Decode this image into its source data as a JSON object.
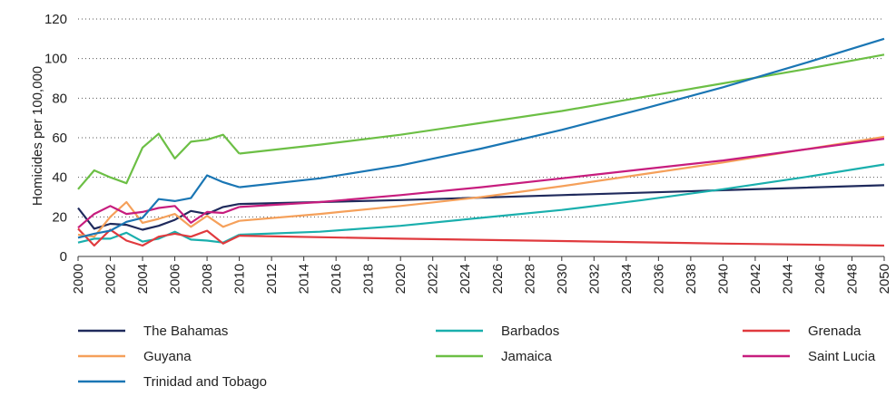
{
  "chart_data": {
    "type": "line",
    "ylabel": "Homicides per 100,000",
    "xlabel": "",
    "ylim": [
      0,
      120
    ],
    "xlim": [
      2000,
      2050
    ],
    "y_ticks": [
      0,
      20,
      40,
      60,
      80,
      100,
      120
    ],
    "x_ticks": [
      2000,
      2002,
      2004,
      2006,
      2008,
      2010,
      2012,
      2014,
      2016,
      2018,
      2020,
      2022,
      2024,
      2026,
      2028,
      2030,
      2032,
      2034,
      2036,
      2038,
      2040,
      2042,
      2044,
      2046,
      2048,
      2050
    ],
    "projection_start": 2010,
    "grid": "dotted-horizontal",
    "legend_placement": "bottom",
    "series": [
      {
        "name": "The Bahamas",
        "color": "#1f2a5c",
        "observed": [
          [
            2000,
            24.5
          ],
          [
            2001,
            14
          ],
          [
            2002,
            16.5
          ],
          [
            2003,
            16
          ],
          [
            2004,
            13.5
          ],
          [
            2005,
            15.5
          ],
          [
            2006,
            18.5
          ],
          [
            2007,
            23
          ],
          [
            2008,
            21.5
          ],
          [
            2009,
            25
          ],
          [
            2010,
            26.5
          ]
        ],
        "projected": [
          [
            2010,
            26.5
          ],
          [
            2020,
            28.5
          ],
          [
            2030,
            31
          ],
          [
            2040,
            33.5
          ],
          [
            2050,
            36
          ]
        ]
      },
      {
        "name": "Barbados",
        "color": "#1aafad",
        "observed": [
          [
            2000,
            7
          ],
          [
            2001,
            9
          ],
          [
            2002,
            9
          ],
          [
            2003,
            12
          ],
          [
            2004,
            7.5
          ],
          [
            2005,
            9
          ],
          [
            2006,
            12.5
          ],
          [
            2007,
            8.5
          ],
          [
            2008,
            8
          ],
          [
            2009,
            7
          ],
          [
            2010,
            11
          ]
        ],
        "projected": [
          [
            2010,
            11
          ],
          [
            2015,
            12.5
          ],
          [
            2020,
            15.5
          ],
          [
            2025,
            19.5
          ],
          [
            2030,
            23.5
          ],
          [
            2035,
            28.5
          ],
          [
            2040,
            34
          ],
          [
            2045,
            40
          ],
          [
            2050,
            46.5
          ]
        ]
      },
      {
        "name": "Grenada",
        "color": "#e03a3e",
        "observed": [
          [
            2000,
            14
          ],
          [
            2001,
            5.5
          ],
          [
            2002,
            13.5
          ],
          [
            2003,
            8
          ],
          [
            2004,
            5.5
          ],
          [
            2005,
            10
          ],
          [
            2006,
            11.5
          ],
          [
            2007,
            10
          ],
          [
            2008,
            13
          ],
          [
            2009,
            6.5
          ],
          [
            2010,
            10.5
          ]
        ],
        "projected": [
          [
            2010,
            10.5
          ],
          [
            2020,
            9
          ],
          [
            2030,
            7.8
          ],
          [
            2040,
            6.5
          ],
          [
            2050,
            5.5
          ]
        ]
      },
      {
        "name": "Guyana",
        "color": "#f5a05a",
        "observed": [
          [
            2000,
            11
          ],
          [
            2001,
            10
          ],
          [
            2002,
            20
          ],
          [
            2003,
            27.5
          ],
          [
            2004,
            17
          ],
          [
            2005,
            19
          ],
          [
            2006,
            21.5
          ],
          [
            2007,
            15
          ],
          [
            2008,
            20.5
          ],
          [
            2009,
            15
          ],
          [
            2010,
            18
          ]
        ],
        "projected": [
          [
            2010,
            18
          ],
          [
            2015,
            21.5
          ],
          [
            2020,
            25.5
          ],
          [
            2025,
            30
          ],
          [
            2030,
            35.5
          ],
          [
            2035,
            41.5
          ],
          [
            2040,
            47.5
          ],
          [
            2045,
            54
          ],
          [
            2050,
            60.5
          ]
        ]
      },
      {
        "name": "Jamaica",
        "color": "#6cbf45",
        "observed": [
          [
            2000,
            34
          ],
          [
            2001,
            43.5
          ],
          [
            2002,
            40
          ],
          [
            2003,
            37
          ],
          [
            2004,
            55
          ],
          [
            2005,
            62
          ],
          [
            2006,
            49.5
          ],
          [
            2007,
            58
          ],
          [
            2008,
            59
          ],
          [
            2009,
            61.5
          ],
          [
            2010,
            52
          ]
        ],
        "projected": [
          [
            2010,
            52
          ],
          [
            2015,
            56.5
          ],
          [
            2020,
            61.5
          ],
          [
            2025,
            67.5
          ],
          [
            2030,
            73.5
          ],
          [
            2035,
            80.5
          ],
          [
            2040,
            87.5
          ],
          [
            2045,
            94.5
          ],
          [
            2050,
            102
          ]
        ]
      },
      {
        "name": "Saint Lucia",
        "color": "#c71d7e",
        "observed": [
          [
            2000,
            14.5
          ],
          [
            2001,
            21.5
          ],
          [
            2002,
            25.5
          ],
          [
            2003,
            21.5
          ],
          [
            2004,
            22.5
          ],
          [
            2005,
            24.5
          ],
          [
            2006,
            25.5
          ],
          [
            2007,
            17
          ],
          [
            2008,
            22.5
          ],
          [
            2009,
            22
          ],
          [
            2010,
            25
          ]
        ],
        "projected": [
          [
            2010,
            25
          ],
          [
            2015,
            27.5
          ],
          [
            2020,
            31
          ],
          [
            2025,
            35
          ],
          [
            2030,
            39.5
          ],
          [
            2035,
            44
          ],
          [
            2040,
            48.5
          ],
          [
            2045,
            54
          ],
          [
            2050,
            59.5
          ]
        ]
      },
      {
        "name": "Trinidad and Tobago",
        "color": "#1a76b4",
        "observed": [
          [
            2000,
            9.5
          ],
          [
            2001,
            11.5
          ],
          [
            2002,
            13
          ],
          [
            2003,
            17.5
          ],
          [
            2004,
            19.5
          ],
          [
            2005,
            29
          ],
          [
            2006,
            28
          ],
          [
            2007,
            29.5
          ],
          [
            2008,
            41
          ],
          [
            2009,
            37.5
          ],
          [
            2010,
            35
          ]
        ],
        "projected": [
          [
            2010,
            35
          ],
          [
            2015,
            39.5
          ],
          [
            2020,
            46
          ],
          [
            2025,
            54.5
          ],
          [
            2030,
            64
          ],
          [
            2035,
            74.5
          ],
          [
            2040,
            85.5
          ],
          [
            2045,
            97.5
          ],
          [
            2050,
            110
          ]
        ]
      }
    ]
  }
}
